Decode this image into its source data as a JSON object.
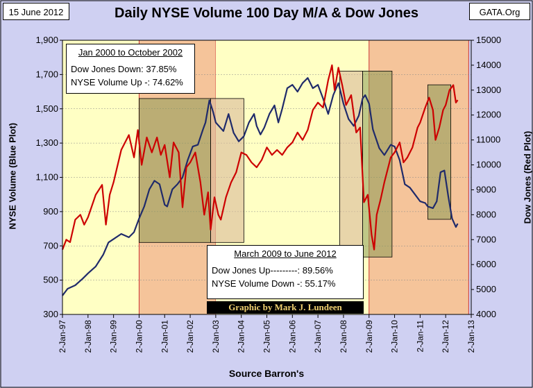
{
  "header": {
    "date": "15 June 2012",
    "title": "Daily NYSE Volume  100 Day M/A & Dow Jones",
    "site": "GATA.Org"
  },
  "box_2000": {
    "heading": "Jan 2000 to October 2002",
    "line1": "Dow Jones Down:  37.85%",
    "line2": "NYSE Volume Up -: 74.62%"
  },
  "box_2009": {
    "heading": "March 2009 to June 2012",
    "line1": "Dow Jones Up---------:  89.56%",
    "line2": "NYSE Volume Down -: 55.17%"
  },
  "credit": "Graphic by Mark J. Lundeen",
  "source": "Source Barron's",
  "colors": {
    "bg": "#cfd0f2",
    "plot_yellow": "#ffffc4",
    "plot_orange": "#f5c49a",
    "dow_red": "#cc0000",
    "nyse_blue": "#1f2a6a",
    "olive_box": "#8a9a55",
    "tan_box": "#d9b99a"
  },
  "chart_data": {
    "type": "line",
    "xlabel": "",
    "x_ticks": [
      "2-Jan-97",
      "2-Jan-98",
      "2-Jan-99",
      "2-Jan-00",
      "2-Jan-01",
      "2-Jan-02",
      "2-Jan-03",
      "2-Jan-04",
      "2-Jan-05",
      "2-Jan-06",
      "2-Jan-07",
      "2-Jan-08",
      "2-Jan-09",
      "2-Jan-10",
      "2-Jan-11",
      "2-Jan-12",
      "2-Jan-13"
    ],
    "xlim": [
      1997.0,
      2013.0
    ],
    "y_left": {
      "label": "NYSE Volume (Blue Plot)",
      "ticks": [
        "300",
        "500",
        "700",
        "900",
        "1,100",
        "1,300",
        "1,500",
        "1,700",
        "1,900"
      ],
      "ylim": [
        300,
        1900
      ]
    },
    "y_right": {
      "label": "Dow Jones (Red Plot)",
      "ticks": [
        "4000",
        "5000",
        "6000",
        "7000",
        "8000",
        "9000",
        "10000",
        "11000",
        "12000",
        "13000",
        "14000",
        "15000"
      ],
      "ylim": [
        4000,
        15000
      ]
    },
    "shaded_periods": [
      {
        "from": 1997.0,
        "to": 2000.0,
        "color": "yellow"
      },
      {
        "from": 2000.0,
        "to": 2003.0,
        "color": "orange"
      },
      {
        "from": 2003.0,
        "to": 2009.0,
        "color": "yellow"
      },
      {
        "from": 2009.0,
        "to": 2012.9,
        "color": "orange"
      }
    ],
    "overlay_boxes": [
      {
        "x0": 2000.0,
        "x1": 2002.8,
        "y0": 720,
        "y1": 1560,
        "color": "olive"
      },
      {
        "x0": 2002.8,
        "x1": 2004.1,
        "y0": 720,
        "y1": 1560,
        "color": "tan"
      },
      {
        "x0": 2007.85,
        "x1": 2008.75,
        "y0": 635,
        "y1": 1720,
        "color": "tan"
      },
      {
        "x0": 2008.75,
        "x1": 2009.9,
        "y0": 635,
        "y1": 1720,
        "color": "olive"
      },
      {
        "x0": 2011.3,
        "x1": 2012.2,
        "y0": 855,
        "y1": 1640,
        "color": "olive"
      }
    ],
    "series": [
      {
        "name": "NYSE Volume (Blue Plot)",
        "axis": "left",
        "points": [
          [
            1997.0,
            410
          ],
          [
            1997.2,
            450
          ],
          [
            1997.5,
            470
          ],
          [
            1997.8,
            510
          ],
          [
            1998.0,
            540
          ],
          [
            1998.3,
            580
          ],
          [
            1998.6,
            650
          ],
          [
            1998.8,
            720
          ],
          [
            1999.0,
            740
          ],
          [
            1999.3,
            770
          ],
          [
            1999.6,
            750
          ],
          [
            1999.8,
            780
          ],
          [
            2000.0,
            860
          ],
          [
            2000.2,
            930
          ],
          [
            2000.4,
            1030
          ],
          [
            2000.6,
            1080
          ],
          [
            2000.8,
            1060
          ],
          [
            2001.0,
            940
          ],
          [
            2001.1,
            930
          ],
          [
            2001.3,
            1030
          ],
          [
            2001.5,
            1060
          ],
          [
            2001.7,
            1100
          ],
          [
            2001.9,
            1200
          ],
          [
            2002.1,
            1280
          ],
          [
            2002.3,
            1290
          ],
          [
            2002.5,
            1380
          ],
          [
            2002.6,
            1420
          ],
          [
            2002.75,
            1550
          ],
          [
            2002.9,
            1480
          ],
          [
            2003.0,
            1420
          ],
          [
            2003.3,
            1370
          ],
          [
            2003.5,
            1470
          ],
          [
            2003.7,
            1360
          ],
          [
            2003.9,
            1310
          ],
          [
            2004.1,
            1340
          ],
          [
            2004.3,
            1420
          ],
          [
            2004.5,
            1470
          ],
          [
            2004.6,
            1400
          ],
          [
            2004.75,
            1350
          ],
          [
            2004.9,
            1390
          ],
          [
            2005.1,
            1470
          ],
          [
            2005.3,
            1520
          ],
          [
            2005.45,
            1420
          ],
          [
            2005.6,
            1500
          ],
          [
            2005.8,
            1620
          ],
          [
            2006.0,
            1640
          ],
          [
            2006.2,
            1600
          ],
          [
            2006.4,
            1650
          ],
          [
            2006.6,
            1680
          ],
          [
            2006.8,
            1620
          ],
          [
            2007.0,
            1640
          ],
          [
            2007.2,
            1560
          ],
          [
            2007.4,
            1470
          ],
          [
            2007.6,
            1580
          ],
          [
            2007.8,
            1650
          ],
          [
            2008.0,
            1530
          ],
          [
            2008.2,
            1440
          ],
          [
            2008.4,
            1400
          ],
          [
            2008.6,
            1460
          ],
          [
            2008.75,
            1560
          ],
          [
            2008.85,
            1580
          ],
          [
            2009.0,
            1530
          ],
          [
            2009.15,
            1380
          ],
          [
            2009.4,
            1270
          ],
          [
            2009.6,
            1230
          ],
          [
            2009.85,
            1290
          ],
          [
            2010.0,
            1280
          ],
          [
            2010.2,
            1200
          ],
          [
            2010.4,
            1060
          ],
          [
            2010.6,
            1040
          ],
          [
            2010.8,
            1000
          ],
          [
            2011.0,
            960
          ],
          [
            2011.2,
            950
          ],
          [
            2011.3,
            930
          ],
          [
            2011.5,
            920
          ],
          [
            2011.65,
            960
          ],
          [
            2011.8,
            1130
          ],
          [
            2011.95,
            1140
          ],
          [
            2012.1,
            990
          ],
          [
            2012.25,
            860
          ],
          [
            2012.4,
            810
          ],
          [
            2012.47,
            830
          ]
        ]
      },
      {
        "name": "Dow Jones (Red Plot)",
        "axis": "right",
        "points": [
          [
            1997.0,
            6600
          ],
          [
            1997.15,
            7000
          ],
          [
            1997.3,
            6900
          ],
          [
            1997.5,
            7800
          ],
          [
            1997.7,
            8000
          ],
          [
            1997.85,
            7600
          ],
          [
            1998.0,
            7900
          ],
          [
            1998.3,
            8800
          ],
          [
            1998.55,
            9200
          ],
          [
            1998.7,
            7600
          ],
          [
            1998.85,
            8800
          ],
          [
            1999.0,
            9300
          ],
          [
            1999.3,
            10600
          ],
          [
            1999.45,
            10900
          ],
          [
            1999.6,
            11200
          ],
          [
            1999.8,
            10300
          ],
          [
            1999.95,
            11400
          ],
          [
            2000.1,
            10000
          ],
          [
            2000.3,
            11100
          ],
          [
            2000.5,
            10500
          ],
          [
            2000.7,
            11100
          ],
          [
            2000.85,
            10400
          ],
          [
            2001.0,
            10800
          ],
          [
            2001.2,
            9500
          ],
          [
            2001.35,
            10900
          ],
          [
            2001.55,
            10500
          ],
          [
            2001.7,
            8300
          ],
          [
            2001.85,
            9900
          ],
          [
            2002.0,
            10100
          ],
          [
            2002.2,
            10500
          ],
          [
            2002.4,
            9300
          ],
          [
            2002.55,
            8000
          ],
          [
            2002.7,
            8900
          ],
          [
            2002.8,
            7400
          ],
          [
            2002.95,
            8700
          ],
          [
            2003.1,
            8000
          ],
          [
            2003.2,
            7800
          ],
          [
            2003.4,
            8700
          ],
          [
            2003.6,
            9300
          ],
          [
            2003.8,
            9700
          ],
          [
            2004.0,
            10500
          ],
          [
            2004.2,
            10400
          ],
          [
            2004.4,
            10100
          ],
          [
            2004.6,
            9900
          ],
          [
            2004.8,
            10200
          ],
          [
            2005.0,
            10700
          ],
          [
            2005.2,
            10400
          ],
          [
            2005.4,
            10600
          ],
          [
            2005.6,
            10400
          ],
          [
            2005.8,
            10700
          ],
          [
            2006.0,
            10900
          ],
          [
            2006.2,
            11300
          ],
          [
            2006.4,
            11000
          ],
          [
            2006.6,
            11400
          ],
          [
            2006.8,
            12200
          ],
          [
            2007.0,
            12500
          ],
          [
            2007.2,
            12300
          ],
          [
            2007.4,
            13400
          ],
          [
            2007.55,
            14000
          ],
          [
            2007.65,
            13000
          ],
          [
            2007.8,
            13900
          ],
          [
            2007.95,
            13200
          ],
          [
            2008.1,
            12400
          ],
          [
            2008.3,
            12800
          ],
          [
            2008.5,
            11300
          ],
          [
            2008.65,
            11500
          ],
          [
            2008.8,
            8500
          ],
          [
            2008.95,
            8800
          ],
          [
            2009.1,
            7200
          ],
          [
            2009.2,
            6600
          ],
          [
            2009.3,
            8000
          ],
          [
            2009.45,
            8600
          ],
          [
            2009.6,
            9300
          ],
          [
            2009.85,
            10300
          ],
          [
            2010.0,
            10500
          ],
          [
            2010.2,
            10900
          ],
          [
            2010.35,
            10100
          ],
          [
            2010.5,
            10300
          ],
          [
            2010.7,
            10700
          ],
          [
            2010.9,
            11500
          ],
          [
            2011.0,
            11700
          ],
          [
            2011.2,
            12300
          ],
          [
            2011.35,
            12700
          ],
          [
            2011.5,
            12200
          ],
          [
            2011.6,
            11000
          ],
          [
            2011.75,
            11500
          ],
          [
            2011.9,
            12200
          ],
          [
            2012.0,
            12400
          ],
          [
            2012.15,
            13000
          ],
          [
            2012.3,
            13200
          ],
          [
            2012.4,
            12500
          ],
          [
            2012.47,
            12600
          ]
        ]
      }
    ]
  }
}
